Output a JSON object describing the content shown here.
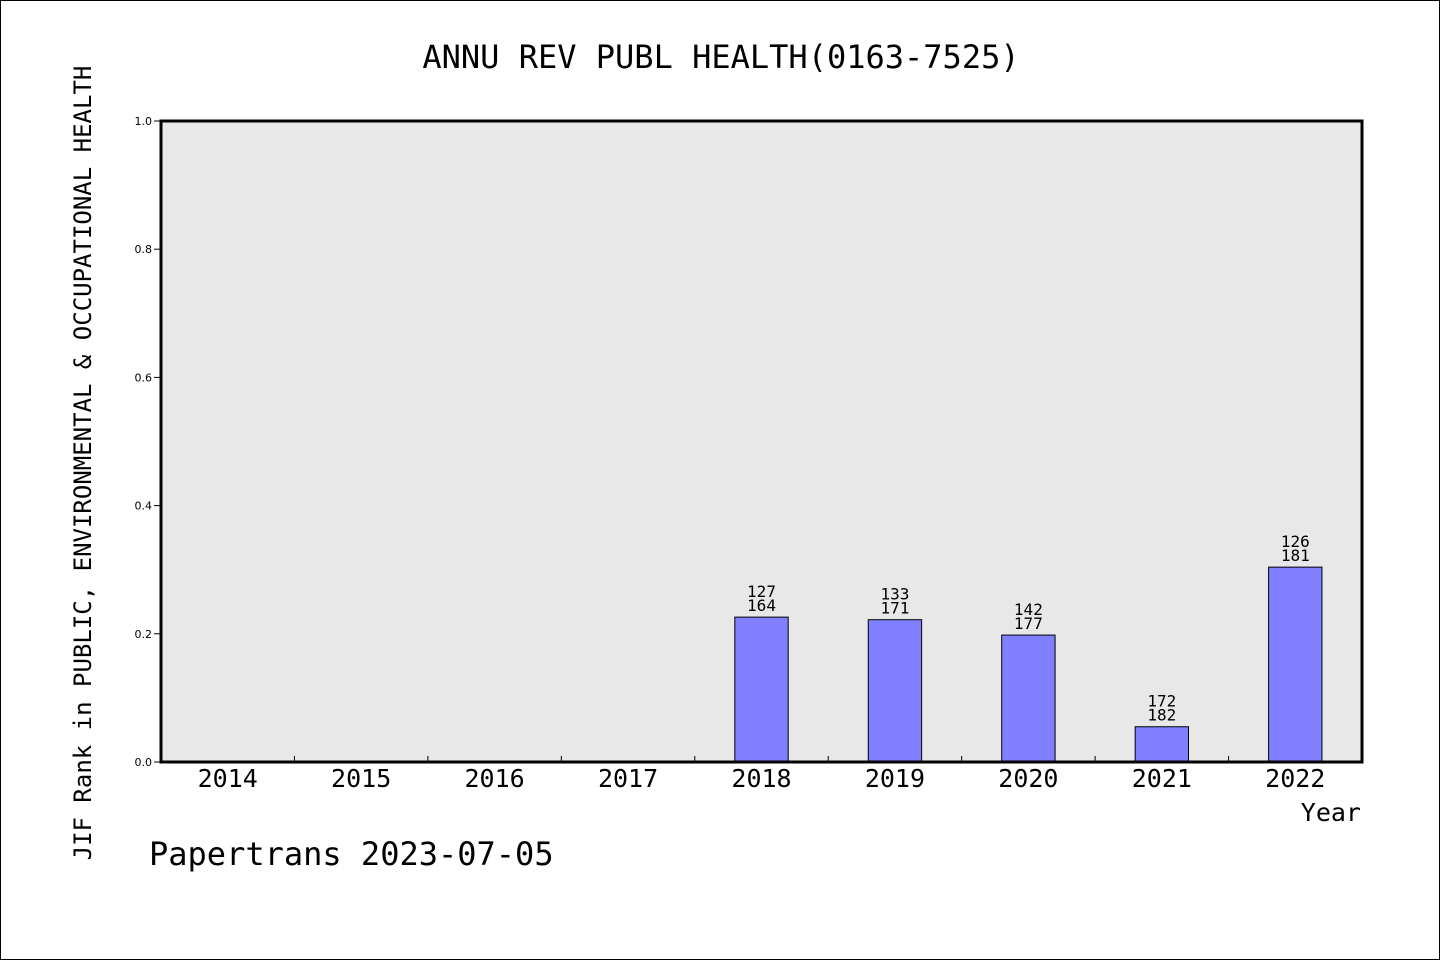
{
  "chart_data": {
    "type": "bar",
    "title": "ANNU REV PUBL HEALTH(0163-7525)",
    "xlabel": "Year",
    "ylabel": "JIF Rank in PUBLIC, ENVIRONMENTAL & OCCUPATIONAL HEALTH",
    "ylim": [
      0,
      1.0
    ],
    "yticks": [
      "0.0",
      "0.2",
      "0.4",
      "0.6",
      "0.8",
      "1.0"
    ],
    "categories": [
      "2014",
      "2015",
      "2016",
      "2017",
      "2018",
      "2019",
      "2020",
      "2021",
      "2022"
    ],
    "values": [
      null,
      null,
      null,
      null,
      0.226,
      0.222,
      0.198,
      0.055,
      0.304
    ],
    "rank_labels": [
      null,
      null,
      null,
      null,
      [
        "127",
        "164"
      ],
      [
        "133",
        "171"
      ],
      [
        "142",
        "177"
      ],
      [
        "172",
        "182"
      ],
      [
        "126",
        "181"
      ]
    ],
    "bar_color": "#8080ff",
    "plot_background": "#e8e8e8",
    "grid": false,
    "footer": "Papertrans 2023-07-05"
  }
}
